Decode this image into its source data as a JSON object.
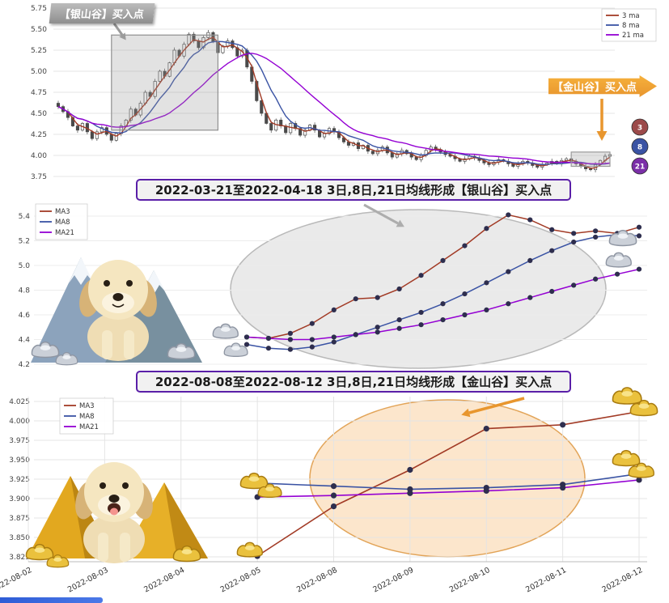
{
  "chart_data": [
    {
      "type": "candlestick",
      "name": "daily-kline-with-moving-averages",
      "ylim": [
        3.75,
        5.75
      ],
      "yticks": [
        "5.75",
        "5.50",
        "5.25",
        "5.00",
        "4.75",
        "4.50",
        "4.25",
        "4.00",
        "3.75"
      ],
      "legend": [
        {
          "label": "3 ma",
          "color": "#A23B26"
        },
        {
          "label": "8 ma",
          "color": "#3A53A4"
        },
        {
          "label": "21 ma",
          "color": "#9400D3"
        }
      ],
      "ma_windows": [
        3,
        8,
        21
      ],
      "closes": [
        4.58,
        4.52,
        4.45,
        4.35,
        4.3,
        4.38,
        4.28,
        4.2,
        4.28,
        4.33,
        4.25,
        4.18,
        4.26,
        4.35,
        4.42,
        4.55,
        4.48,
        4.62,
        4.75,
        4.7,
        4.88,
        5.0,
        4.94,
        5.1,
        5.25,
        5.18,
        5.32,
        5.44,
        5.36,
        5.28,
        5.4,
        5.46,
        5.35,
        5.22,
        5.3,
        5.36,
        5.28,
        5.18,
        5.25,
        5.05,
        4.88,
        4.65,
        4.5,
        4.38,
        4.3,
        4.42,
        4.35,
        4.27,
        4.38,
        4.32,
        4.24,
        4.3,
        4.36,
        4.3,
        4.22,
        4.26,
        4.32,
        4.28,
        4.21,
        4.16,
        4.12,
        4.15,
        4.08,
        4.12,
        4.05,
        4.02,
        4.06,
        4.1,
        4.03,
        3.98,
        4.02,
        4.06,
        4.02,
        3.98,
        3.95,
        4.0,
        4.06,
        4.1,
        4.07,
        4.04,
        4.01,
        3.99,
        3.96,
        3.93,
        3.96,
        3.99,
        3.97,
        3.94,
        3.91,
        3.89,
        3.92,
        3.95,
        3.93,
        3.9,
        3.87,
        3.9,
        3.93,
        3.91,
        3.88,
        3.86,
        3.89,
        3.91,
        3.93,
        3.9,
        3.94,
        3.96,
        3.93,
        3.9,
        3.87,
        3.84,
        3.83,
        3.89,
        3.94,
        3.99,
        4.01
      ],
      "annotations": {
        "silver_callout": "【银山谷】买入点",
        "gold_callout": "【金山谷】买入点",
        "silver_box": {
          "i0": 11,
          "i1": 33,
          "v0": 4.3,
          "v1": 5.43
        },
        "gold_box": {
          "i0": 106,
          "i1": 114,
          "v0": 3.87,
          "v1": 4.04
        },
        "badges": [
          {
            "label": "3",
            "color": "#9C4A4A"
          },
          {
            "label": "8",
            "color": "#3A53A4"
          },
          {
            "label": "21",
            "color": "#7B2FA8"
          }
        ]
      }
    },
    {
      "type": "line",
      "title": "2022-03-21至2022-04-18 3日,8日,21日均线形成【银山谷】买入点",
      "ylim": [
        4.2,
        5.4
      ],
      "yticks": [
        "5.4",
        "5.2",
        "5.0",
        "4.8",
        "4.6",
        "4.4",
        "4.2"
      ],
      "legend_position": "upper-left",
      "series": [
        {
          "name": "MA3",
          "color": "#A23B26",
          "values": [
            4.42,
            4.41,
            4.45,
            4.53,
            4.64,
            4.73,
            4.74,
            4.81,
            4.92,
            5.04,
            5.16,
            5.3,
            5.41,
            5.37,
            5.29,
            5.26,
            5.28,
            5.26,
            5.31
          ]
        },
        {
          "name": "MA8",
          "color": "#3A53A4",
          "values": [
            4.36,
            4.33,
            4.32,
            4.34,
            4.38,
            4.44,
            4.5,
            4.56,
            4.62,
            4.69,
            4.77,
            4.86,
            4.95,
            5.04,
            5.12,
            5.19,
            5.23,
            5.25,
            5.24
          ]
        },
        {
          "name": "MA21",
          "color": "#9400D3",
          "values": [
            4.42,
            4.41,
            4.4,
            4.4,
            4.42,
            4.44,
            4.46,
            4.49,
            4.52,
            4.56,
            4.6,
            4.64,
            4.69,
            4.74,
            4.79,
            4.84,
            4.89,
            4.93,
            4.97
          ]
        }
      ]
    },
    {
      "type": "line",
      "title": "2022-08-08至2022-08-12 3日,8日,21日均线形成【金山谷】买入点",
      "ylim": [
        3.825,
        4.025
      ],
      "yticks": [
        "4.025",
        "4.000",
        "3.975",
        "3.950",
        "3.925",
        "3.900",
        "3.875",
        "3.850",
        "3.825"
      ],
      "xticks": [
        "2022-08-02",
        "2022-08-03",
        "2022-08-04",
        "2022-08-05",
        "2022-08-08",
        "2022-08-09",
        "2022-08-10",
        "2022-08-11",
        "2022-08-12"
      ],
      "legend_position": "upper-left",
      "series": [
        {
          "name": "MA3",
          "color": "#A23B26",
          "values": [
            null,
            null,
            null,
            3.826,
            3.89,
            3.937,
            3.99,
            3.995,
            4.012
          ]
        },
        {
          "name": "MA8",
          "color": "#3A53A4",
          "values": [
            null,
            null,
            null,
            3.92,
            3.916,
            3.912,
            3.914,
            3.918,
            3.932
          ]
        },
        {
          "name": "MA21",
          "color": "#9400D3",
          "values": [
            null,
            null,
            null,
            3.902,
            3.904,
            3.907,
            3.91,
            3.914,
            3.924
          ]
        }
      ]
    }
  ],
  "decorations": {
    "silver_scene": "puppy with snowy mountains and silver sycee ingots",
    "gold_scene": "puppy with gold pyramids and gold sycee ingots",
    "silver_ingot_icon": "sycee-ingot-silver",
    "gold_ingot_icon": "sycee-ingot-gold"
  }
}
